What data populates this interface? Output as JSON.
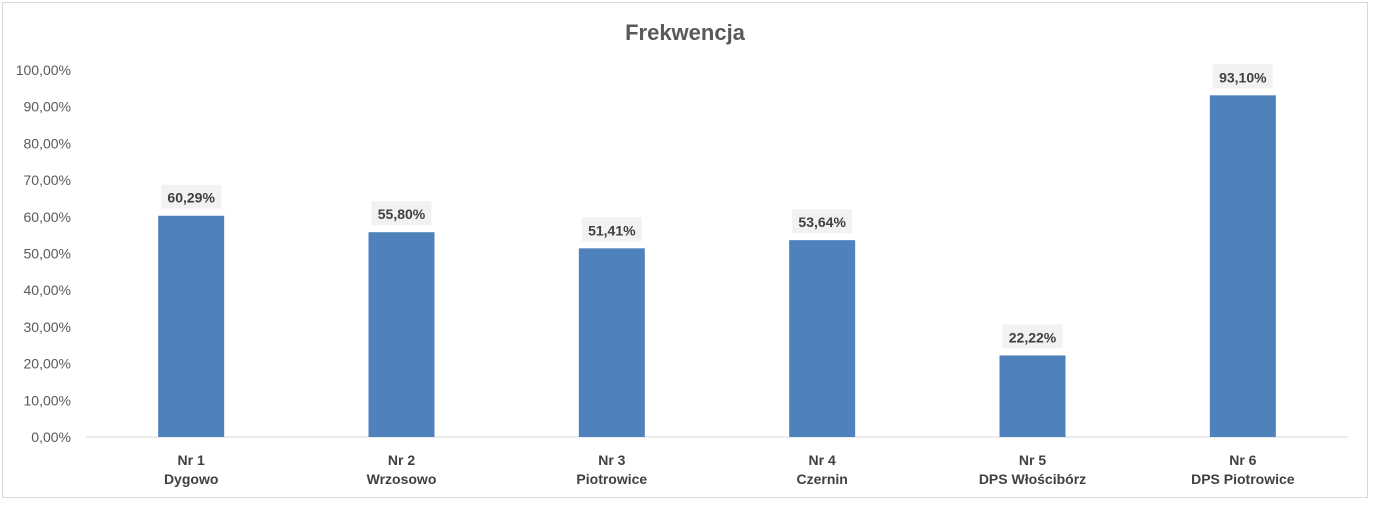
{
  "chart_data": {
    "type": "bar",
    "title": "Frekwencja",
    "xlabel": "",
    "ylabel": "",
    "categories": [
      [
        "Nr 1",
        "Dygowo"
      ],
      [
        "Nr 2",
        "Wrzosowo"
      ],
      [
        "Nr 3",
        "Piotrowice"
      ],
      [
        "Nr 4",
        "Czernin"
      ],
      [
        "Nr 5",
        "DPS Włościbórz"
      ],
      [
        "Nr 6",
        "DPS Piotrowice"
      ]
    ],
    "values": [
      60.29,
      55.8,
      51.41,
      53.64,
      22.22,
      93.1
    ],
    "data_labels": [
      "60,29%",
      "55,80%",
      "51,41%",
      "53,64%",
      "22,22%",
      "93,10%"
    ],
    "ylim": [
      0,
      100
    ],
    "yticks": [
      0,
      10,
      20,
      30,
      40,
      50,
      60,
      70,
      80,
      90,
      100
    ],
    "ytick_labels": [
      "0,00%",
      "10,00%",
      "20,00%",
      "30,00%",
      "40,00%",
      "50,00%",
      "60,00%",
      "70,00%",
      "80,00%",
      "90,00%",
      "100,00%"
    ],
    "grid": false,
    "legend": "none",
    "bar_color": "#4f81bd",
    "axis_color": "#d9d9d9",
    "label_bg_color": "#f2f2f2"
  }
}
